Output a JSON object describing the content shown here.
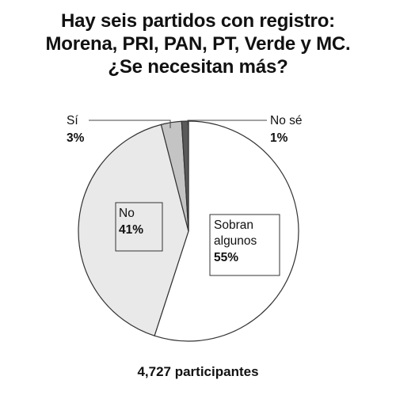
{
  "title_lines": [
    "Hay seis partidos con registro:",
    "Morena, PRI, PAN, PT, Verde y MC.",
    "¿Se necesitan más?"
  ],
  "footer": "4,727 participantes",
  "chart_data": {
    "type": "pie",
    "title": "Hay seis partidos con registro: Morena, PRI, PAN, PT, Verde y MC. ¿Se necesitan más?",
    "start_angle_deg": 0,
    "direction": "clockwise",
    "slices": [
      {
        "label": "Sobran algunos",
        "value": 55,
        "display": "55%",
        "color": "#ffffff"
      },
      {
        "label": "No",
        "value": 41,
        "display": "41%",
        "color": "#e9e9e9"
      },
      {
        "label": "Sí",
        "value": 3,
        "display": "3%",
        "color": "#c4c4c4"
      },
      {
        "label": "No sé",
        "value": 1,
        "display": "1%",
        "color": "#5a5a5a"
      }
    ]
  }
}
